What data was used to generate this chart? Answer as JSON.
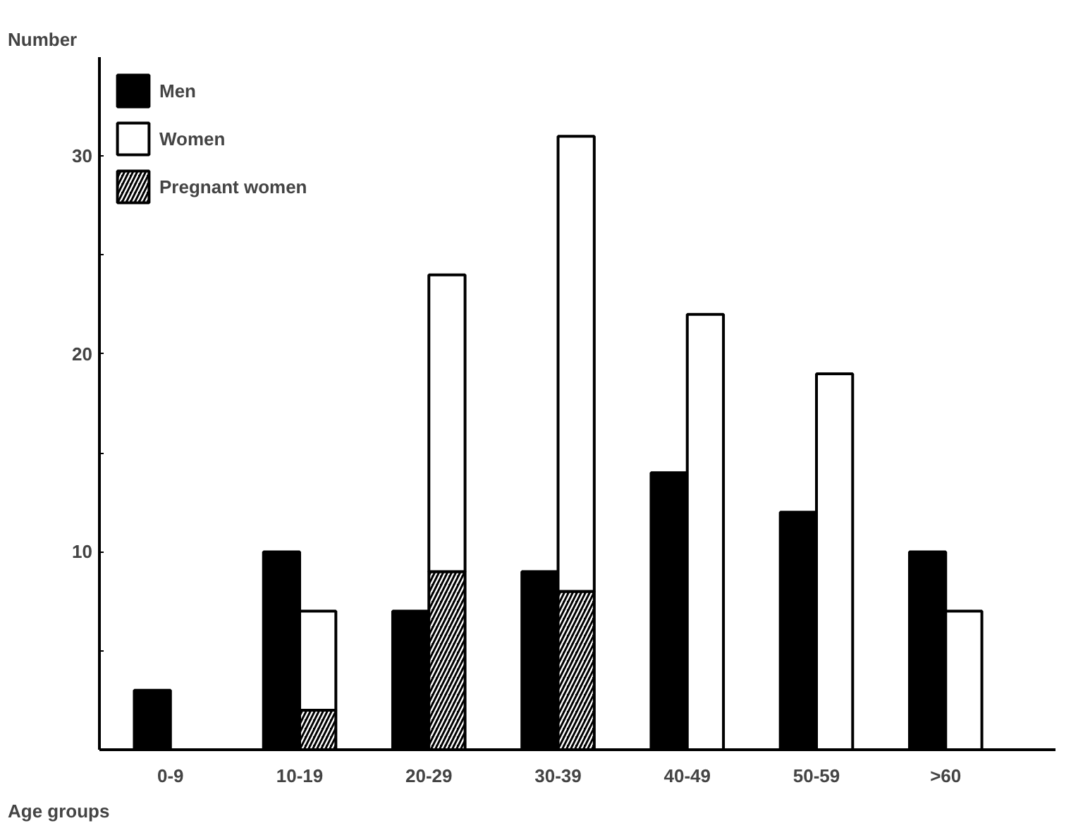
{
  "chart_data": {
    "type": "bar",
    "xlabel": "Age groups",
    "ylabel": "Number",
    "categories": [
      "0-9",
      "10-19",
      "20-29",
      "30-39",
      "40-49",
      "50-59",
      ">60"
    ],
    "series": [
      {
        "name": "Men",
        "color": "#000000",
        "values": [
          3,
          10,
          7,
          9,
          14,
          12,
          10
        ]
      },
      {
        "name": "Pregnant women",
        "color": "#000000",
        "values": [
          null,
          2,
          9,
          8,
          null,
          null,
          null
        ]
      },
      {
        "name": "Women",
        "color": "#ffffff",
        "base": [
          null,
          2,
          9,
          8,
          0,
          0,
          0
        ],
        "values": [
          null,
          5,
          15,
          23,
          22,
          19,
          7
        ]
      }
    ],
    "ylim": [
      0,
      35
    ],
    "yticks": [
      {
        "value": 5,
        "label": null
      },
      10,
      {
        "value": 15,
        "label": null
      },
      20,
      {
        "value": 25,
        "label": null
      },
      30
    ],
    "legend": "top left"
  }
}
